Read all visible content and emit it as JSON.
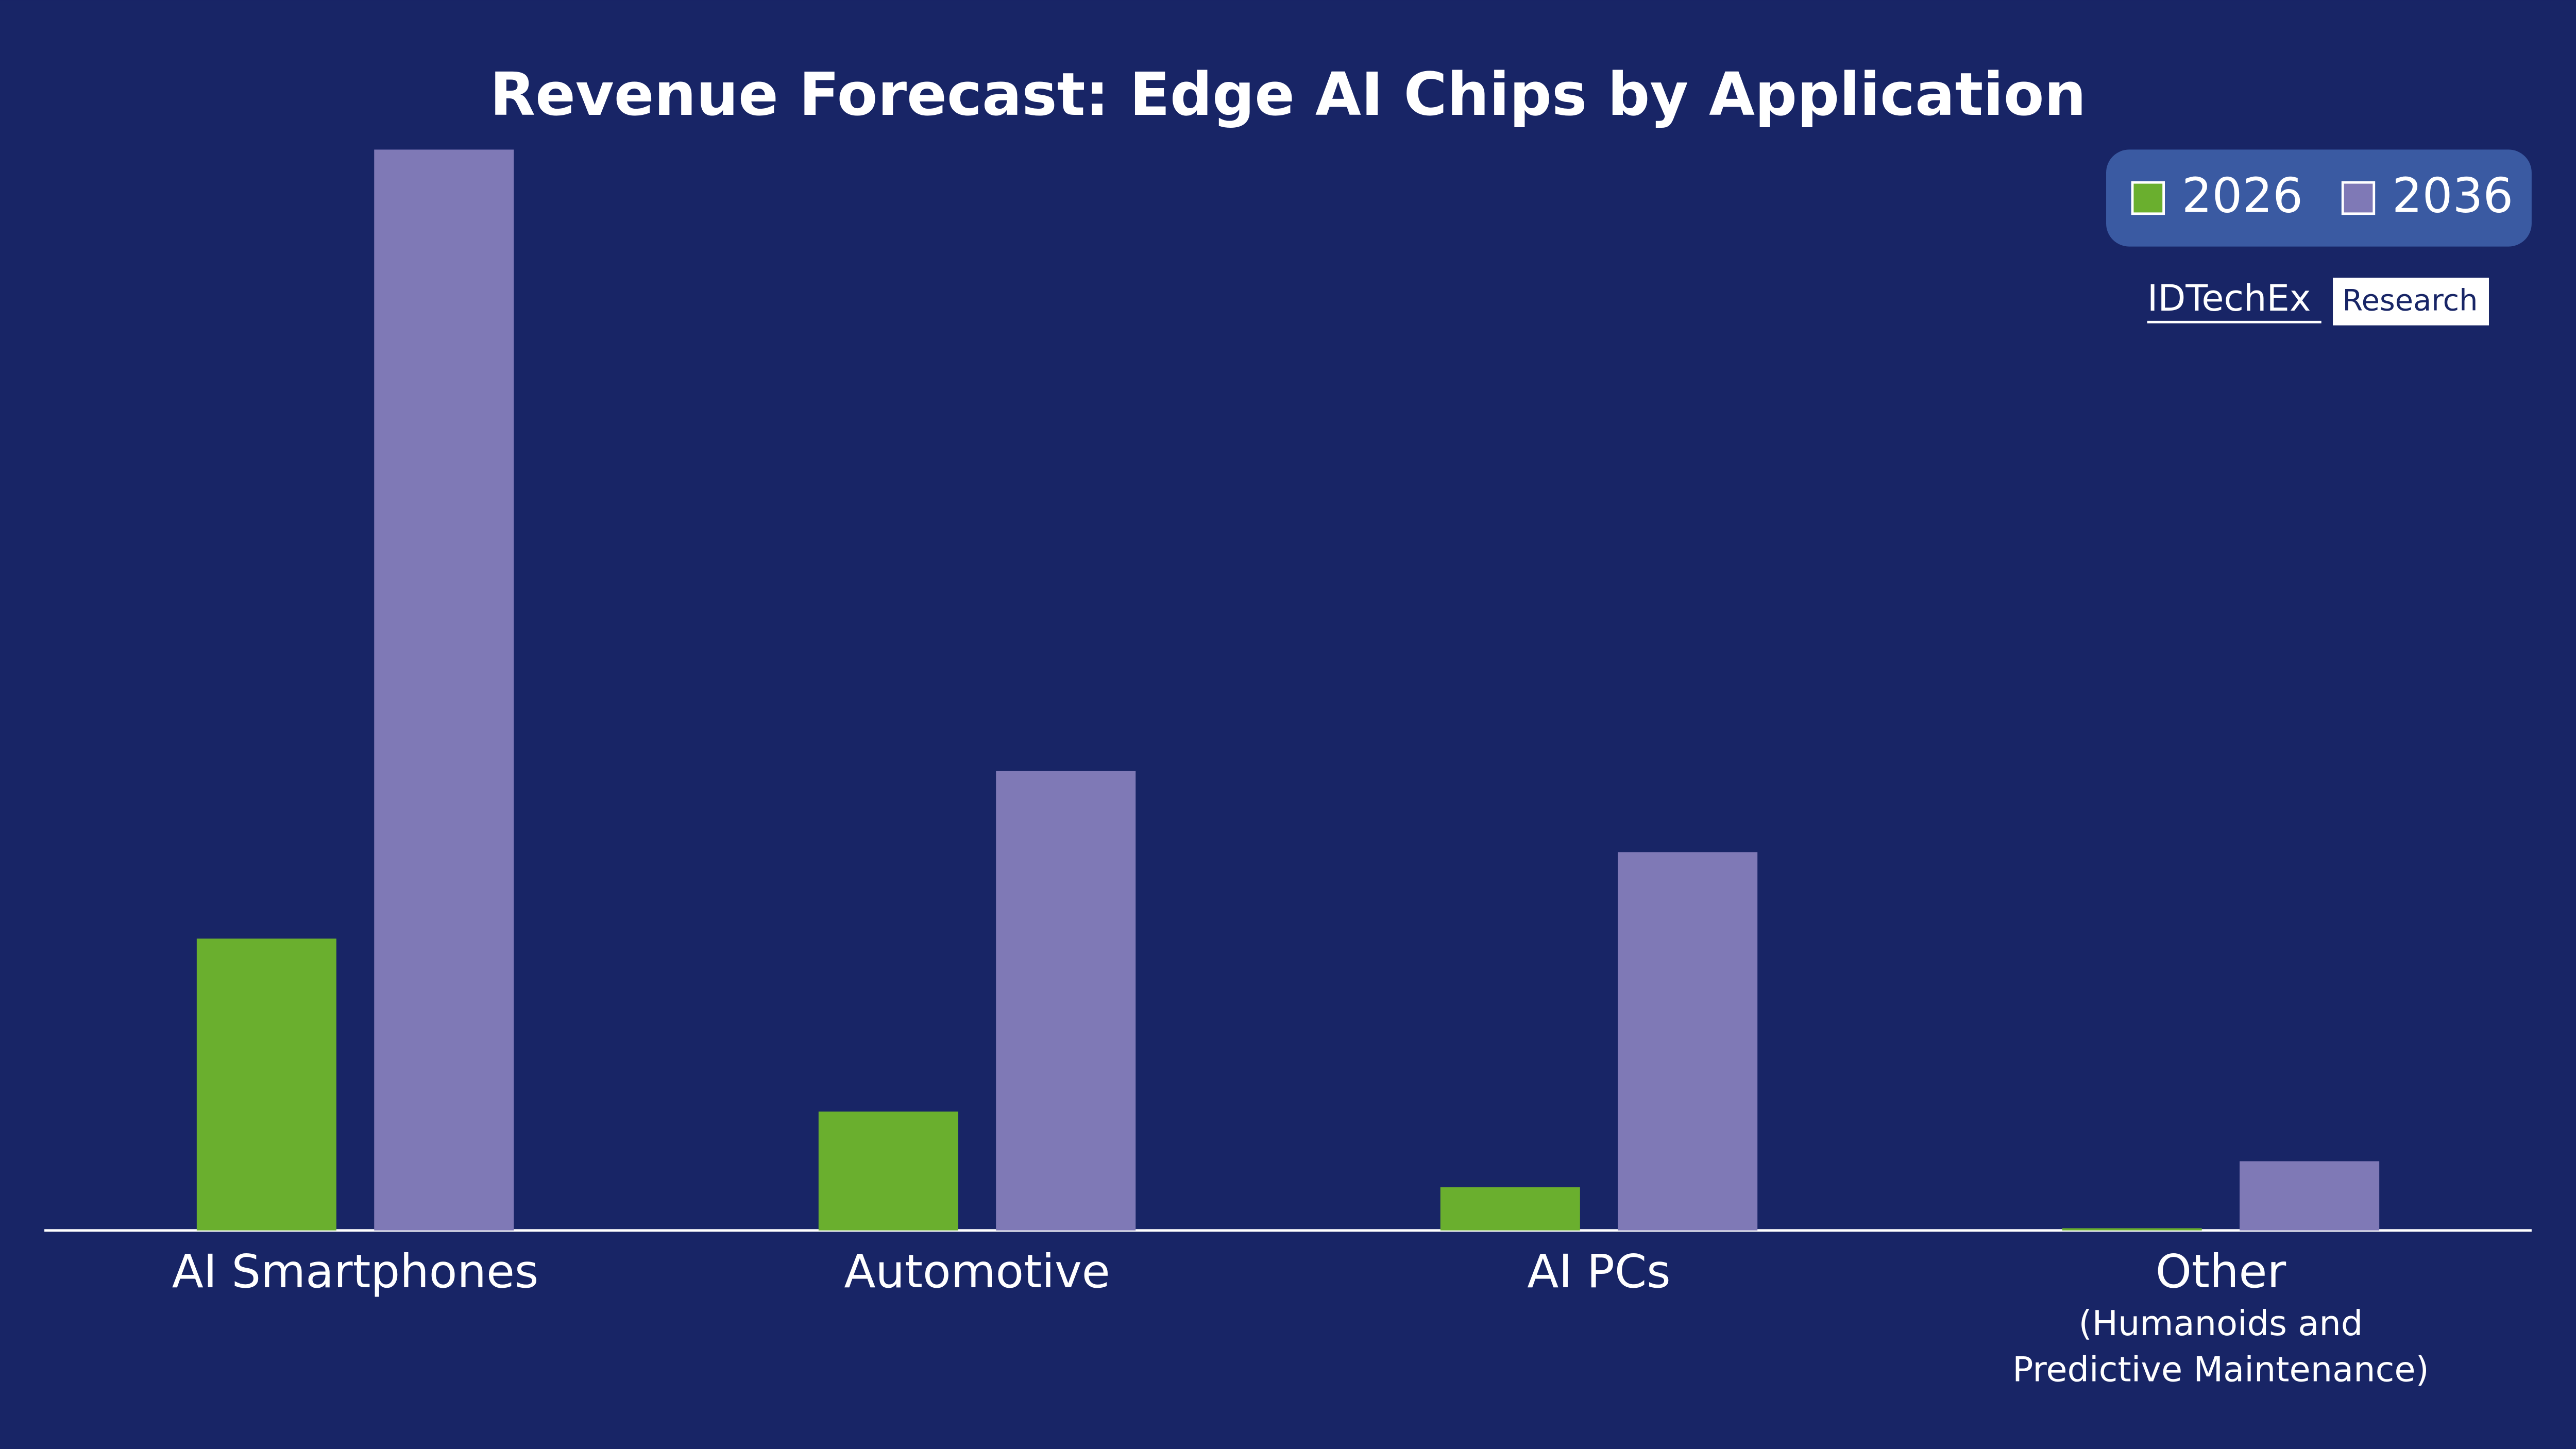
{
  "chart_data": {
    "type": "bar",
    "title": "Revenue Forecast: Edge AI Chips by Application",
    "categories": [
      "AI Smartphones",
      "Automotive",
      "AI PCs",
      "Other"
    ],
    "category_sublabels": [
      null,
      null,
      null,
      [
        "(Humanoids and",
        "Predictive Maintenance)"
      ]
    ],
    "series": [
      {
        "name": "2026",
        "color": "#6aaf2e",
        "values": [
          27,
          11,
          4,
          0.2
        ]
      },
      {
        "name": "2036",
        "color": "#7f79b6",
        "values": [
          100,
          42.5,
          35,
          6.4
        ]
      }
    ],
    "ylim": [
      0,
      100
    ],
    "legend": "top-right",
    "logo": {
      "name": "IDTechEx",
      "tag": "Research"
    }
  }
}
